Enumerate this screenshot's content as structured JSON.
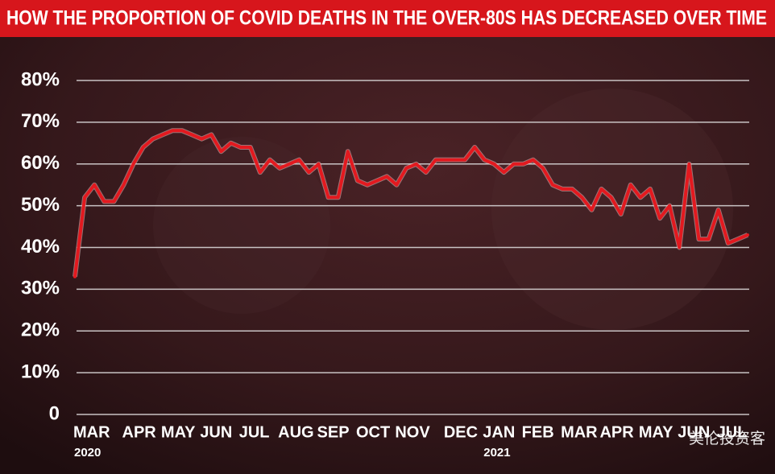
{
  "chart_data": {
    "type": "line",
    "title": "HOW THE PROPORTION OF COVID DEATHS IN THE OVER-80S HAS DECREASED OVER TIME",
    "categories": [
      "MAR",
      null,
      null,
      null,
      null,
      "APR",
      null,
      null,
      null,
      "MAY",
      null,
      null,
      null,
      "JUN",
      null,
      null,
      null,
      "JUL",
      null,
      null,
      null,
      "AUG",
      null,
      null,
      null,
      "SEP",
      null,
      null,
      null,
      "OCT",
      null,
      null,
      null,
      "NOV",
      null,
      null,
      null,
      null,
      "DEC",
      null,
      null,
      null,
      "JAN",
      null,
      null,
      null,
      "FEB",
      null,
      null,
      null,
      "MAR",
      null,
      null,
      null,
      "APR",
      null,
      null,
      null,
      "MAY",
      null,
      null,
      null,
      "JUN",
      null,
      null,
      null,
      "JUL",
      null,
      null,
      null
    ],
    "category_years": [
      "2020",
      null,
      null,
      null,
      null,
      null,
      null,
      null,
      null,
      null,
      null,
      null,
      null,
      null,
      null,
      null,
      null,
      null,
      null,
      null,
      null,
      null,
      null,
      null,
      null,
      null,
      null,
      null,
      null,
      null,
      null,
      null,
      null,
      null,
      null,
      null,
      null,
      null,
      null,
      null,
      null,
      null,
      "2021",
      null,
      null,
      null,
      null,
      null,
      null,
      null,
      null,
      null,
      null,
      null,
      null,
      null,
      null,
      null,
      null,
      null,
      null,
      null,
      null,
      null,
      null,
      null,
      null,
      null,
      null,
      null
    ],
    "values": [
      33,
      52,
      55,
      51,
      51,
      55,
      60,
      64,
      66,
      67,
      68,
      68,
      67,
      66,
      67,
      63,
      65,
      64,
      64,
      58,
      61,
      59,
      60,
      61,
      58,
      60,
      52,
      52,
      63,
      56,
      55,
      56,
      57,
      55,
      59,
      60,
      58,
      61,
      61,
      61,
      61,
      64,
      61,
      60,
      58,
      60,
      60,
      61,
      59,
      55,
      54,
      54,
      52,
      49,
      54,
      52,
      48,
      55,
      52,
      54,
      47,
      50,
      40,
      60,
      42,
      42,
      49,
      41,
      42,
      43
    ],
    "color": "#e3191f",
    "ylim": [
      0,
      80
    ],
    "yticks": [
      0,
      {
        "value": 10,
        "label": "10%"
      },
      {
        "value": 20,
        "label": "20%"
      },
      {
        "value": 30,
        "label": "30%"
      },
      {
        "value": 40,
        "label": "40%"
      },
      {
        "value": 50,
        "label": "50%"
      },
      {
        "value": 60,
        "label": "60%"
      },
      {
        "value": 70,
        "label": "70%"
      },
      {
        "value": 80,
        "label": "80%"
      }
    ],
    "grid": true,
    "watermark": "美伦投资客"
  }
}
